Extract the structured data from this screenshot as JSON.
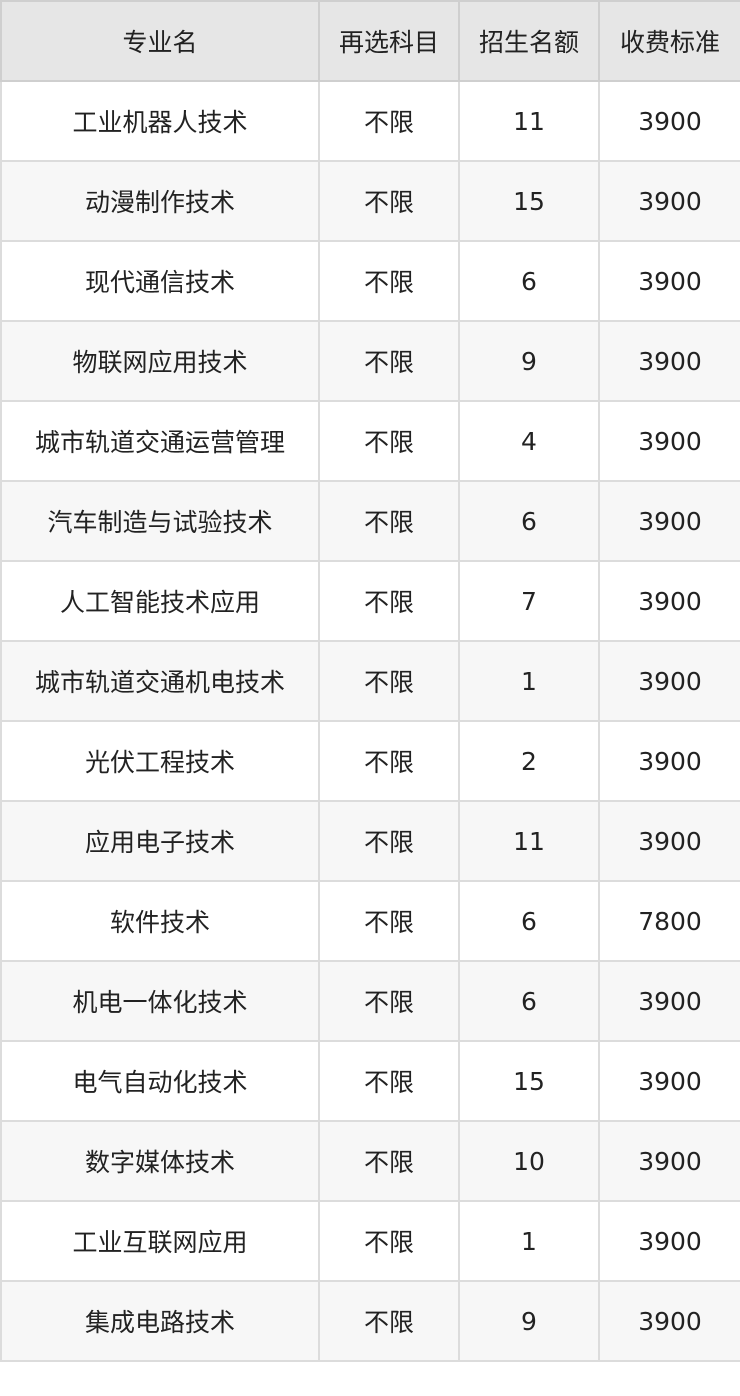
{
  "table": {
    "headers": [
      "专业名",
      "再选科目",
      "招生名额",
      "收费标准"
    ],
    "rows": [
      [
        "工业机器人技术",
        "不限",
        "11",
        "3900"
      ],
      [
        "动漫制作技术",
        "不限",
        "15",
        "3900"
      ],
      [
        "现代通信技术",
        "不限",
        "6",
        "3900"
      ],
      [
        "物联网应用技术",
        "不限",
        "9",
        "3900"
      ],
      [
        "城市轨道交通运营管理",
        "不限",
        "4",
        "3900"
      ],
      [
        "汽车制造与试验技术",
        "不限",
        "6",
        "3900"
      ],
      [
        "人工智能技术应用",
        "不限",
        "7",
        "3900"
      ],
      [
        "城市轨道交通机电技术",
        "不限",
        "1",
        "3900"
      ],
      [
        "光伏工程技术",
        "不限",
        "2",
        "3900"
      ],
      [
        "应用电子技术",
        "不限",
        "11",
        "3900"
      ],
      [
        "软件技术",
        "不限",
        "6",
        "7800"
      ],
      [
        "机电一体化技术",
        "不限",
        "6",
        "3900"
      ],
      [
        "电气自动化技术",
        "不限",
        "15",
        "3900"
      ],
      [
        "数字媒体技术",
        "不限",
        "10",
        "3900"
      ],
      [
        "工业互联网应用",
        "不限",
        "1",
        "3900"
      ],
      [
        "集成电路技术",
        "不限",
        "9",
        "3900"
      ]
    ]
  }
}
